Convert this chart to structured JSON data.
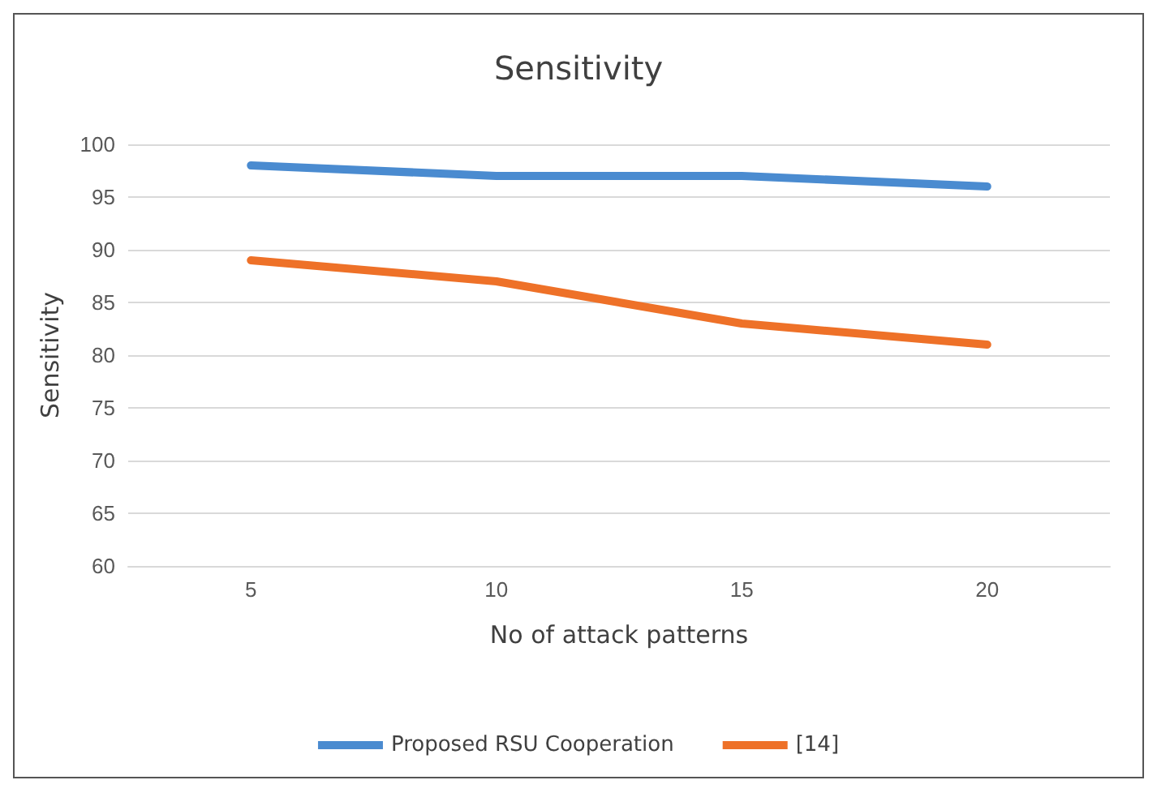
{
  "chart_data": {
    "type": "line",
    "title": "Sensitivity",
    "xlabel": "No of attack patterns",
    "ylabel": "Sensitivity",
    "categories": [
      "5",
      "10",
      "15",
      "20"
    ],
    "series": [
      {
        "name": "Proposed RSU Cooperation",
        "color": "#4a8bd0",
        "values": [
          98,
          97,
          97,
          96
        ]
      },
      {
        "name": "[14]",
        "color": "#ee7128",
        "values": [
          89,
          87,
          83,
          81
        ]
      }
    ],
    "ylim": [
      60,
      100
    ],
    "yticks": [
      60,
      65,
      70,
      75,
      80,
      85,
      90,
      95,
      100
    ],
    "grid": "y",
    "legend": "bottom",
    "marker": "none",
    "line_style": "solid"
  }
}
